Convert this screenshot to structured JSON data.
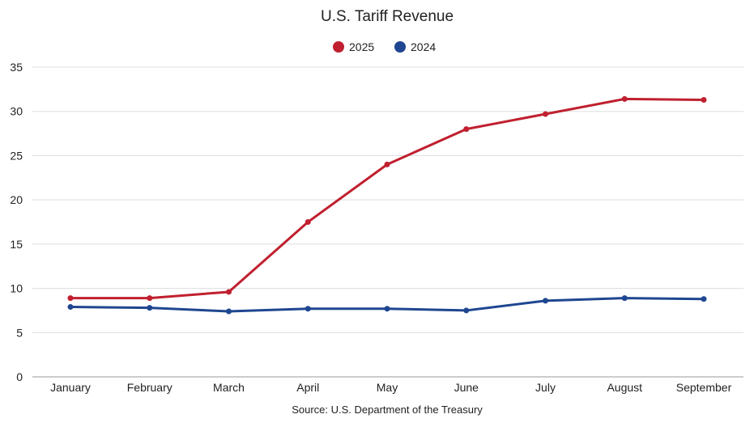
{
  "chart_data": {
    "type": "line",
    "title": "U.S. Tariff Revenue",
    "source": "Source: U.S. Department of the Treasury",
    "categories": [
      "January",
      "February",
      "March",
      "April",
      "May",
      "June",
      "July",
      "August",
      "September"
    ],
    "ylim": [
      0,
      35
    ],
    "yticks": [
      0,
      5,
      10,
      15,
      20,
      25,
      30,
      35
    ],
    "grid": true,
    "legend_position": "top-center",
    "series": [
      {
        "name": "2025",
        "color": "#c0202f",
        "values": [
          8.9,
          8.9,
          9.6,
          17.5,
          24.0,
          28.0,
          29.7,
          31.4,
          31.3
        ]
      },
      {
        "name": "2024",
        "color": "#1f4690",
        "values": [
          7.9,
          7.8,
          7.4,
          7.7,
          7.7,
          7.5,
          8.6,
          8.9,
          8.8
        ]
      }
    ]
  }
}
